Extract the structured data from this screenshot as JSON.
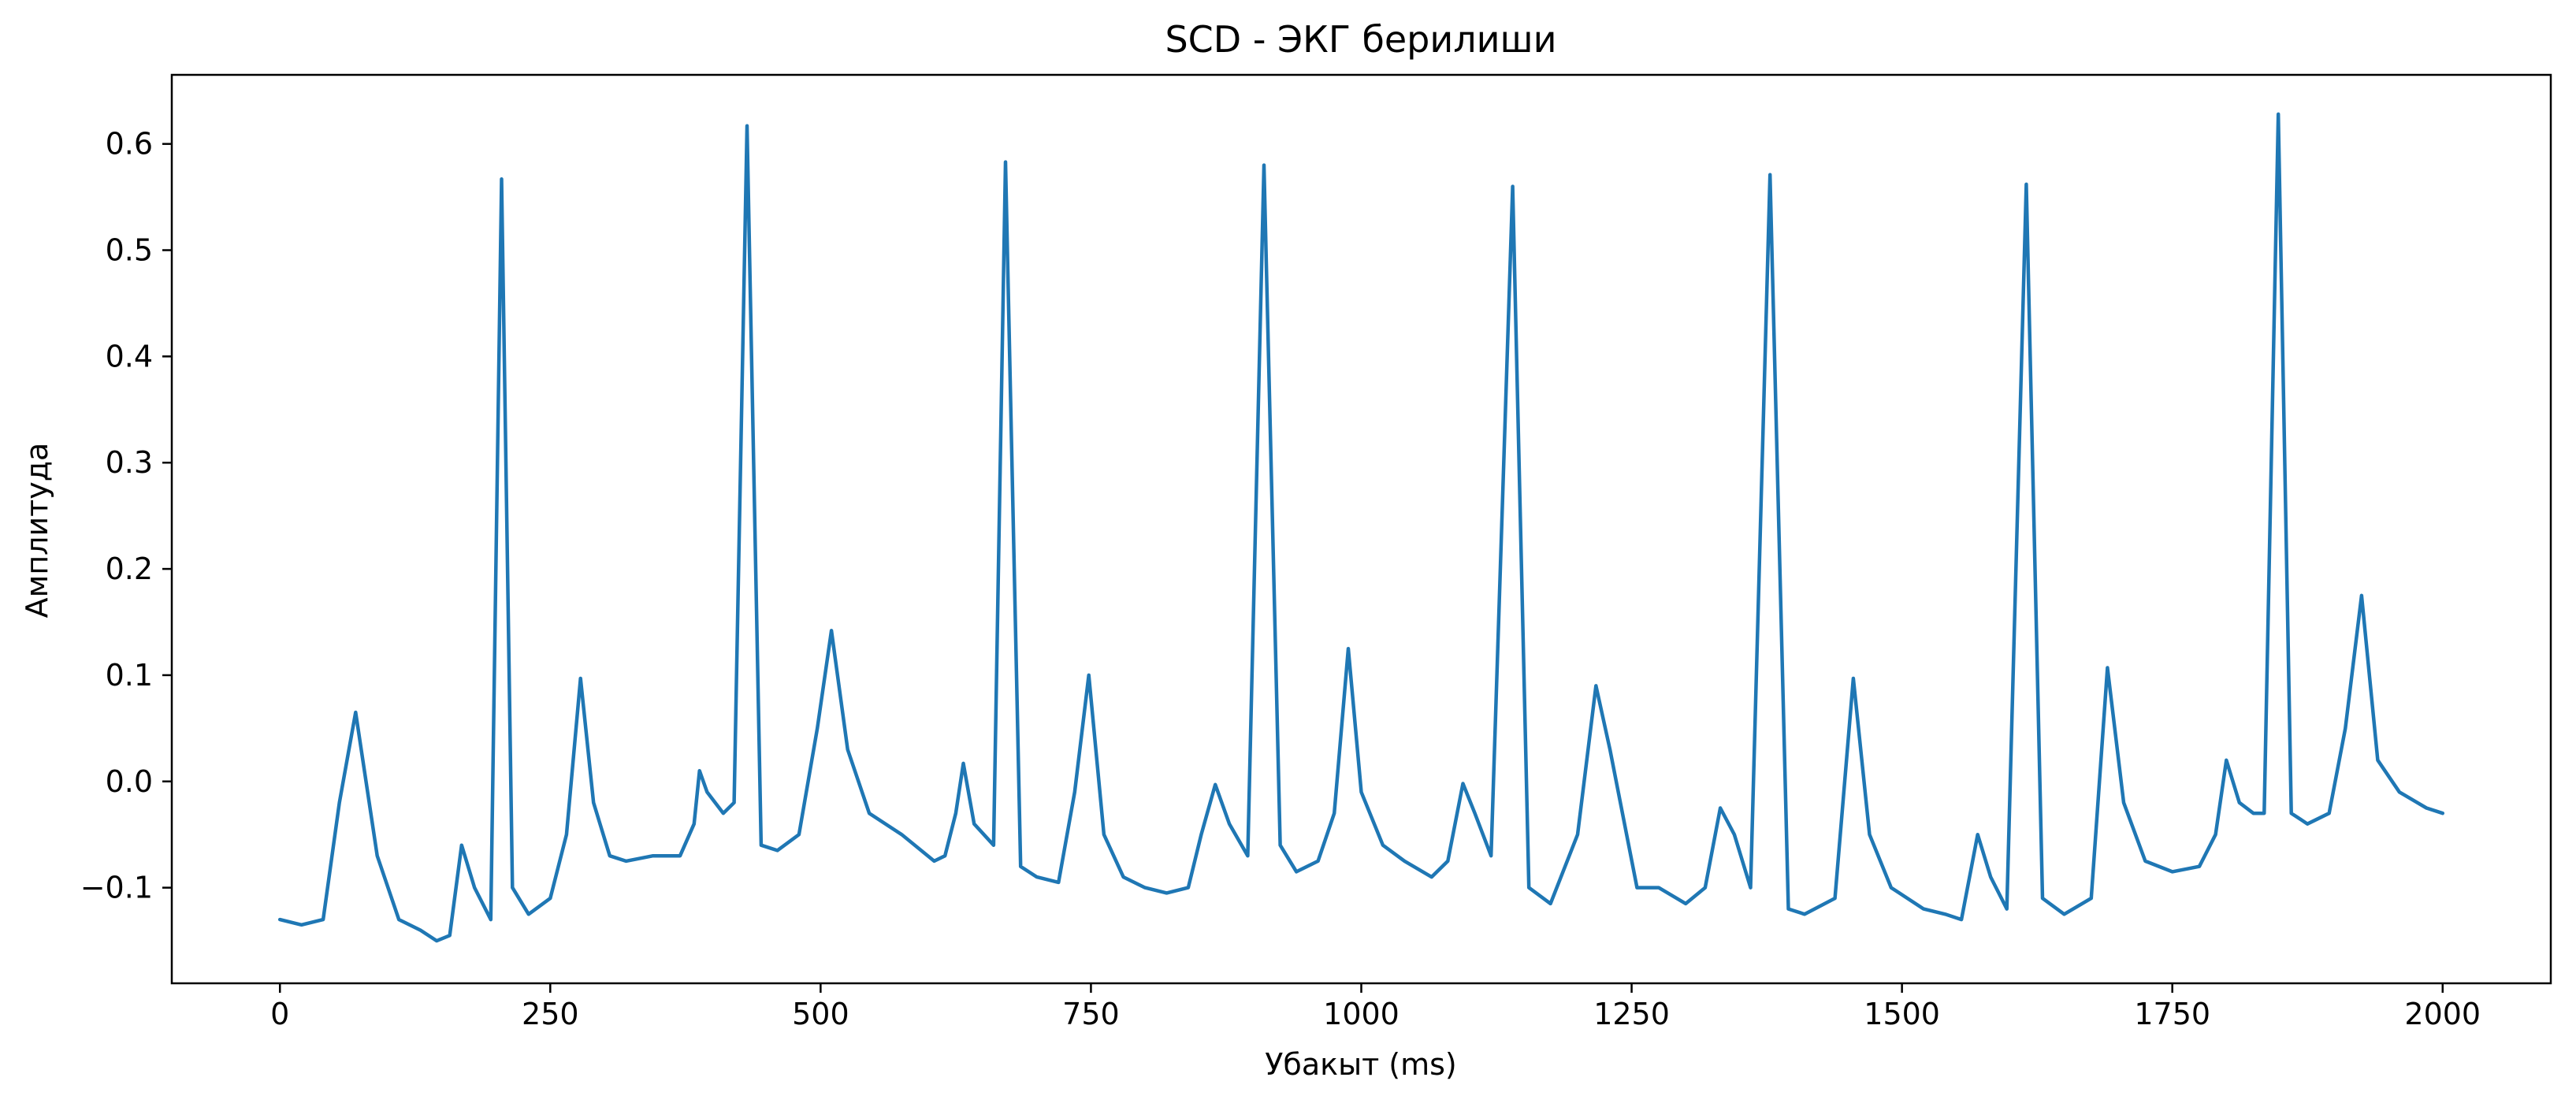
{
  "chart_data": {
    "type": "line",
    "title": "SCD - ЭКГ берилиши",
    "xlabel": "Убакыт (ms)",
    "ylabel": "Амплитуда",
    "xlim": [
      -100,
      2100
    ],
    "ylim": [
      -0.19,
      0.665
    ],
    "xticks": [
      0,
      250,
      500,
      750,
      1000,
      1250,
      1500,
      1750,
      2000
    ],
    "xtick_labels": [
      "0",
      "250",
      "500",
      "750",
      "1000",
      "1250",
      "1500",
      "1750",
      "2000"
    ],
    "yticks": [
      -0.1,
      0.0,
      0.1,
      0.2,
      0.3,
      0.4,
      0.5,
      0.6
    ],
    "ytick_labels": [
      "−0.1",
      "0.0",
      "0.1",
      "0.2",
      "0.3",
      "0.4",
      "0.5",
      "0.6"
    ],
    "grid": false,
    "legend": "none",
    "line_color": "#1f77b4",
    "series": [
      {
        "x": [
          0,
          20,
          40,
          55,
          70,
          90,
          110,
          130,
          145,
          157,
          168,
          180,
          195,
          205,
          215,
          230,
          250,
          265,
          278,
          290,
          305,
          320,
          345,
          370,
          383,
          388,
          395,
          410,
          420,
          432,
          445,
          460,
          480,
          497,
          510,
          525,
          545,
          575,
          605,
          615,
          625,
          632,
          642,
          660,
          671,
          685,
          700,
          720,
          735,
          748,
          762,
          780,
          800,
          820,
          840,
          852,
          865,
          878,
          895,
          910,
          925,
          940,
          960,
          975,
          988,
          1000,
          1020,
          1040,
          1065,
          1080,
          1094,
          1105,
          1120,
          1140,
          1155,
          1175,
          1200,
          1217,
          1230,
          1255,
          1275,
          1300,
          1318,
          1332,
          1345,
          1360,
          1378,
          1395,
          1410,
          1438,
          1455,
          1470,
          1490,
          1520,
          1540,
          1555,
          1570,
          1582,
          1597,
          1615,
          1630,
          1650,
          1675,
          1690,
          1705,
          1725,
          1750,
          1775,
          1790,
          1800,
          1812,
          1825,
          1835,
          1848,
          1860,
          1875,
          1895,
          1910,
          1925,
          1940,
          1960,
          1985,
          2000
        ],
        "values": [
          -0.13,
          -0.135,
          -0.13,
          -0.02,
          0.065,
          -0.07,
          -0.13,
          -0.14,
          -0.15,
          -0.145,
          -0.06,
          -0.1,
          -0.13,
          0.567,
          -0.1,
          -0.125,
          -0.11,
          -0.05,
          0.097,
          -0.02,
          -0.07,
          -0.075,
          -0.07,
          -0.07,
          -0.04,
          0.01,
          -0.01,
          -0.03,
          -0.02,
          0.617,
          -0.06,
          -0.065,
          -0.05,
          0.05,
          0.142,
          0.03,
          -0.03,
          -0.05,
          -0.075,
          -0.07,
          -0.03,
          0.017,
          -0.04,
          -0.06,
          0.583,
          -0.08,
          -0.09,
          -0.095,
          -0.01,
          0.1,
          -0.05,
          -0.09,
          -0.1,
          -0.105,
          -0.1,
          -0.05,
          -0.003,
          -0.04,
          -0.07,
          0.58,
          -0.06,
          -0.085,
          -0.075,
          -0.03,
          0.125,
          -0.01,
          -0.06,
          -0.075,
          -0.09,
          -0.075,
          -0.002,
          -0.03,
          -0.07,
          0.56,
          -0.1,
          -0.115,
          -0.05,
          0.09,
          0.03,
          -0.1,
          -0.1,
          -0.115,
          -0.1,
          -0.025,
          -0.05,
          -0.1,
          0.571,
          -0.12,
          -0.125,
          -0.11,
          0.097,
          -0.05,
          -0.1,
          -0.12,
          -0.125,
          -0.13,
          -0.05,
          -0.09,
          -0.12,
          0.562,
          -0.11,
          -0.125,
          -0.11,
          0.107,
          -0.02,
          -0.075,
          -0.085,
          -0.08,
          -0.05,
          0.02,
          -0.02,
          -0.03,
          -0.03,
          0.628,
          -0.03,
          -0.04,
          -0.03,
          0.05,
          0.175,
          0.02,
          -0.01,
          -0.025,
          -0.03
        ]
      }
    ]
  }
}
